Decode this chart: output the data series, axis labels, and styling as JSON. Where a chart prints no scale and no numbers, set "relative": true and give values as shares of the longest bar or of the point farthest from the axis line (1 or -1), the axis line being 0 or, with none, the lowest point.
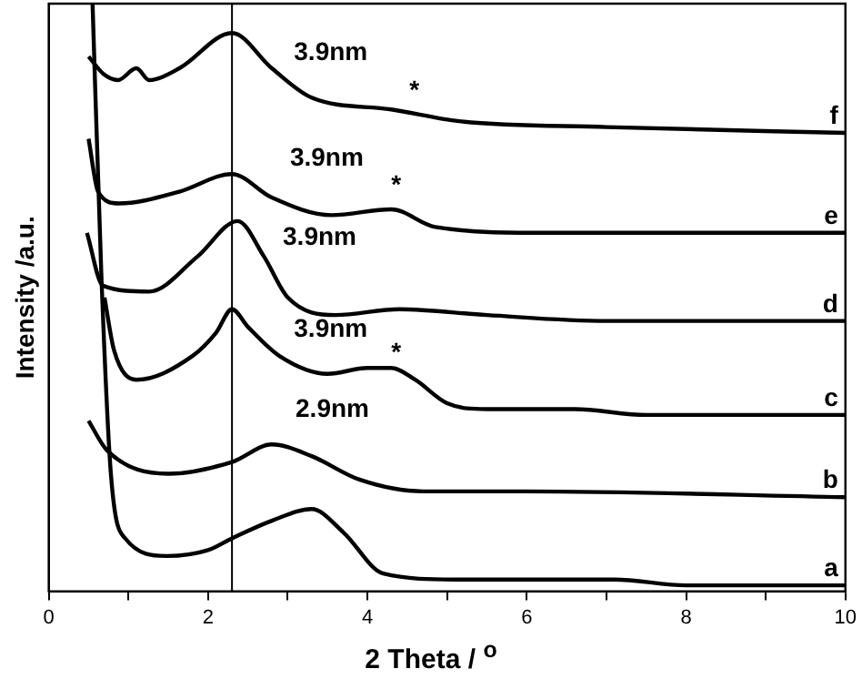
{
  "chart_data": {
    "type": "line",
    "xlabel": "2 Theta / $^{o}$",
    "ylabel": "Intensity /a.u.",
    "relative": true,
    "legend": false,
    "grid": false,
    "marker": "none",
    "line_style": "solid",
    "xlim": [
      0,
      10
    ],
    "xticks": [
      0,
      {
        "value": 1,
        "label": null
      },
      2,
      {
        "value": 3,
        "label": null
      },
      4,
      {
        "value": 5,
        "label": null
      },
      6,
      {
        "value": 7,
        "label": null
      },
      8,
      {
        "value": 9,
        "label": null
      },
      10
    ],
    "ref_lines": [
      {
        "axis": "x",
        "value": 2.3,
        "color": "#000000"
      }
    ],
    "annotations": [
      "3.9nm",
      "*",
      "3.9nm",
      "*",
      "3.9nm",
      "3.9nm",
      "*",
      "2.9nm"
    ],
    "series": [
      {
        "name": "a",
        "color": "#000000",
        "x": [
          0.55,
          0.66,
          0.78,
          0.96,
          1.48,
          2.0,
          2.3,
          2.8,
          3.3,
          3.7,
          4.2,
          5.1,
          6.7,
          7.1,
          8.0,
          10
        ],
        "values": [
          1.0,
          0.54,
          0.2,
          0.09,
          0.06,
          0.07,
          0.09,
          0.12,
          0.14,
          0.1,
          0.03,
          0.02,
          0.02,
          0.02,
          0.01,
          0.01
        ]
      },
      {
        "name": "b",
        "color": "#000000",
        "x": [
          0.5,
          0.73,
          1.5,
          2.3,
          2.8,
          3.3,
          3.9,
          4.7,
          6.0,
          10
        ],
        "values": [
          0.29,
          0.24,
          0.2,
          0.22,
          0.25,
          0.23,
          0.19,
          0.17,
          0.17,
          0.16
        ]
      },
      {
        "name": "c",
        "color": "#000000",
        "x": [
          0.7,
          0.82,
          1.1,
          1.8,
          2.1,
          2.3,
          2.5,
          2.9,
          3.5,
          4.0,
          4.3,
          4.6,
          5.0,
          5.5,
          6.6,
          7.5,
          10
        ],
        "values": [
          0.5,
          0.41,
          0.36,
          0.4,
          0.44,
          0.48,
          0.45,
          0.4,
          0.37,
          0.38,
          0.38,
          0.36,
          0.32,
          0.31,
          0.31,
          0.3,
          0.3
        ]
      },
      {
        "name": "d",
        "color": "#000000",
        "x": [
          0.48,
          0.68,
          1.26,
          1.87,
          2.37,
          2.7,
          3.0,
          3.6,
          4.4,
          5.5,
          7.0,
          10
        ],
        "values": [
          0.61,
          0.52,
          0.51,
          0.57,
          0.63,
          0.57,
          0.5,
          0.47,
          0.48,
          0.47,
          0.46,
          0.46
        ]
      },
      {
        "name": "e",
        "color": "#000000",
        "x": [
          0.5,
          0.62,
          0.88,
          1.64,
          2.3,
          2.8,
          3.55,
          4.3,
          4.85,
          6.2,
          10
        ],
        "values": [
          0.77,
          0.68,
          0.66,
          0.68,
          0.71,
          0.67,
          0.64,
          0.65,
          0.62,
          0.61,
          0.61
        ]
      },
      {
        "name": "f",
        "color": "#000000",
        "x": [
          0.5,
          0.69,
          0.87,
          1.1,
          1.26,
          1.64,
          2.3,
          2.8,
          3.3,
          4.3,
          5.15,
          7.0,
          10
        ],
        "values": [
          0.91,
          0.88,
          0.87,
          0.89,
          0.87,
          0.89,
          0.95,
          0.89,
          0.84,
          0.82,
          0.8,
          0.79,
          0.78
        ]
      }
    ]
  }
}
